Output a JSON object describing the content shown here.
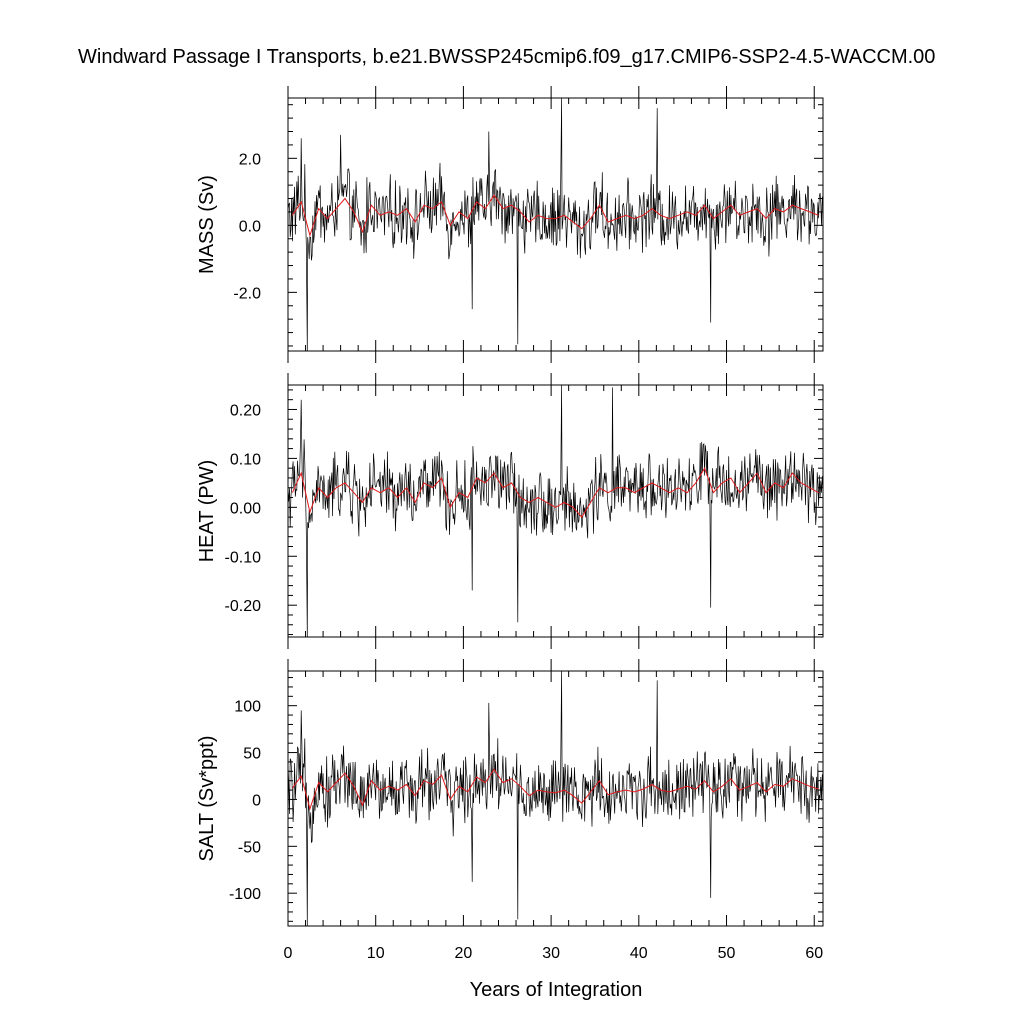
{
  "chart_data": {
    "type": "line",
    "title": "Windward Passage I Transports, b.e21.BWSSP245cmip6.f09_g17.CMIP6-SSP2-4.5-WACCM.00",
    "xlabel": "Years of Integration",
    "xlim": [
      0,
      61
    ],
    "xticks": [
      0,
      10,
      20,
      30,
      40,
      50,
      60
    ],
    "colors": {
      "monthly": "#000000",
      "annual": "#e0191c"
    },
    "panels": [
      {
        "ylabel": "MASS (Sv)",
        "ylim": [
          -3.75,
          3.8
        ],
        "yticks": [
          -2.0,
          0.0,
          2.0
        ],
        "yticklabels": [
          "-2.0",
          "0.0",
          "2.0"
        ],
        "monthly_extremes": [
          {
            "x": 1.5,
            "y": 2.6
          },
          {
            "x": 2.2,
            "y": -3.75
          },
          {
            "x": 6.0,
            "y": 2.7
          },
          {
            "x": 21.0,
            "y": -2.5
          },
          {
            "x": 22.9,
            "y": 2.8
          },
          {
            "x": 26.2,
            "y": -3.55
          },
          {
            "x": 31.2,
            "y": 3.8
          },
          {
            "x": 42.1,
            "y": 3.5
          },
          {
            "x": 48.2,
            "y": -2.9
          }
        ],
        "annual_mean": [
          0.3,
          0.7,
          -0.3,
          0.5,
          0.2,
          0.5,
          0.8,
          0.4,
          -0.2,
          0.6,
          0.3,
          0.4,
          0.3,
          0.5,
          0.1,
          0.6,
          0.5,
          0.7,
          0.0,
          0.4,
          0.2,
          0.7,
          0.5,
          0.9,
          0.5,
          0.6,
          0.4,
          0.1,
          0.3,
          0.2,
          0.2,
          0.3,
          0.1,
          -0.1,
          0.2,
          0.6,
          0.1,
          0.2,
          0.3,
          0.2,
          0.3,
          0.5,
          0.3,
          0.2,
          0.3,
          0.4,
          0.3,
          0.6,
          0.2,
          0.4,
          0.6,
          0.3,
          0.4,
          0.5,
          0.2,
          0.5,
          0.4,
          0.6,
          0.5,
          0.4,
          0.3
        ]
      },
      {
        "ylabel": "HEAT (PW)",
        "ylim": [
          -0.265,
          0.25
        ],
        "yticks": [
          -0.2,
          -0.1,
          0.0,
          0.1,
          0.2
        ],
        "yticklabels": [
          "-0.20",
          "-0.10",
          "0.00",
          "0.10",
          "0.20"
        ],
        "monthly_extremes": [
          {
            "x": 1.5,
            "y": 0.22
          },
          {
            "x": 2.2,
            "y": -0.265
          },
          {
            "x": 21.0,
            "y": -0.17
          },
          {
            "x": 26.2,
            "y": -0.235
          },
          {
            "x": 31.2,
            "y": 0.25
          },
          {
            "x": 37.0,
            "y": 0.245
          },
          {
            "x": 48.2,
            "y": -0.205
          }
        ],
        "annual_mean": [
          0.03,
          0.07,
          -0.01,
          0.04,
          0.02,
          0.04,
          0.05,
          0.03,
          0.01,
          0.04,
          0.03,
          0.04,
          0.02,
          0.04,
          0.01,
          0.05,
          0.04,
          0.06,
          0.0,
          0.03,
          0.02,
          0.06,
          0.05,
          0.07,
          0.04,
          0.05,
          0.02,
          0.01,
          0.02,
          0.01,
          0.0,
          0.01,
          0.0,
          -0.02,
          0.01,
          0.04,
          0.03,
          0.04,
          0.04,
          0.03,
          0.04,
          0.05,
          0.04,
          0.03,
          0.04,
          0.03,
          0.05,
          0.08,
          0.03,
          0.05,
          0.06,
          0.03,
          0.05,
          0.07,
          0.03,
          0.05,
          0.04,
          0.07,
          0.05,
          0.04,
          0.03
        ]
      },
      {
        "ylabel": "SALT (Sv*ppt)",
        "ylim": [
          -135,
          137
        ],
        "yticks": [
          -100,
          -50,
          0,
          50,
          100
        ],
        "yticklabels": [
          "-100",
          "-50",
          "0",
          "50",
          "100"
        ],
        "monthly_extremes": [
          {
            "x": 1.5,
            "y": 95
          },
          {
            "x": 2.2,
            "y": -135
          },
          {
            "x": 21.0,
            "y": -88
          },
          {
            "x": 22.9,
            "y": 103
          },
          {
            "x": 26.2,
            "y": -128
          },
          {
            "x": 31.2,
            "y": 137
          },
          {
            "x": 42.1,
            "y": 127
          },
          {
            "x": 48.2,
            "y": -105
          }
        ],
        "annual_mean": [
          12,
          25,
          -10,
          18,
          8,
          18,
          28,
          14,
          -6,
          20,
          10,
          14,
          10,
          16,
          4,
          20,
          16,
          26,
          0,
          14,
          8,
          24,
          18,
          32,
          18,
          22,
          14,
          4,
          10,
          8,
          7,
          10,
          4,
          -4,
          8,
          20,
          5,
          8,
          10,
          8,
          11,
          16,
          10,
          8,
          11,
          14,
          11,
          20,
          8,
          14,
          22,
          10,
          14,
          18,
          8,
          16,
          14,
          22,
          18,
          14,
          11
        ]
      }
    ]
  }
}
